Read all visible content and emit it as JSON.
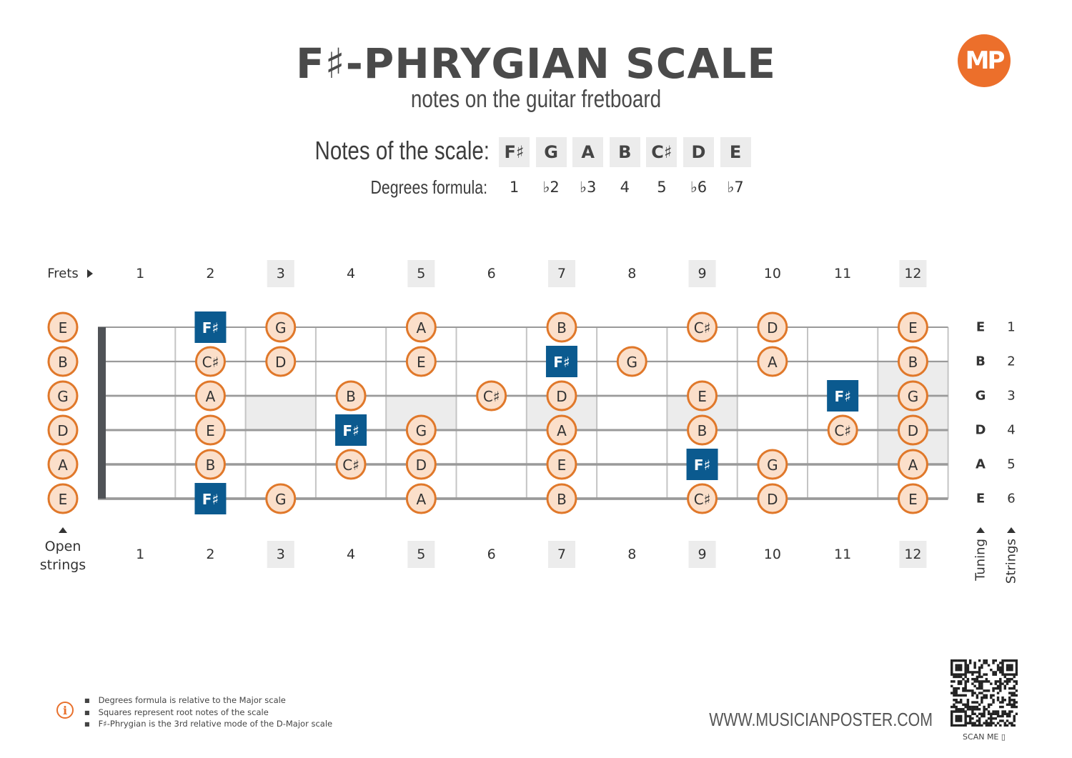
{
  "header": {
    "title": "F♯-PHRYGIAN SCALE",
    "subtitle": "notes on the guitar fretboard",
    "logo_text": "MP"
  },
  "scale": {
    "notes_label": "Notes of the scale:",
    "notes": [
      "F♯",
      "G",
      "A",
      "B",
      "C♯",
      "D",
      "E"
    ],
    "degrees_label": "Degrees formula:",
    "degrees": [
      "1",
      "♭2",
      "♭3",
      "4",
      "5",
      "♭6",
      "♭7"
    ]
  },
  "fretboard": {
    "frets_label": "Frets",
    "fret_numbers": [
      "1",
      "2",
      "3",
      "4",
      "5",
      "6",
      "7",
      "8",
      "9",
      "10",
      "11",
      "12"
    ],
    "marked_frets": [
      3,
      5,
      7,
      9,
      12
    ],
    "open_strings_label": "Open strings",
    "tuning_label": "Tuning",
    "strings_label": "Strings",
    "strings": [
      {
        "tuning": "E",
        "number": "1",
        "open": "E",
        "notes": [
          {
            "fret": 2,
            "note": "F♯",
            "root": true
          },
          {
            "fret": 3,
            "note": "G"
          },
          {
            "fret": 5,
            "note": "A"
          },
          {
            "fret": 7,
            "note": "B"
          },
          {
            "fret": 9,
            "note": "C♯"
          },
          {
            "fret": 10,
            "note": "D"
          },
          {
            "fret": 12,
            "note": "E"
          }
        ]
      },
      {
        "tuning": "B",
        "number": "2",
        "open": "B",
        "notes": [
          {
            "fret": 2,
            "note": "C♯"
          },
          {
            "fret": 3,
            "note": "D"
          },
          {
            "fret": 5,
            "note": "E"
          },
          {
            "fret": 7,
            "note": "F♯",
            "root": true
          },
          {
            "fret": 8,
            "note": "G"
          },
          {
            "fret": 10,
            "note": "A"
          },
          {
            "fret": 12,
            "note": "B"
          }
        ]
      },
      {
        "tuning": "G",
        "number": "3",
        "open": "G",
        "notes": [
          {
            "fret": 2,
            "note": "A"
          },
          {
            "fret": 4,
            "note": "B"
          },
          {
            "fret": 6,
            "note": "C♯"
          },
          {
            "fret": 7,
            "note": "D"
          },
          {
            "fret": 9,
            "note": "E"
          },
          {
            "fret": 11,
            "note": "F♯",
            "root": true
          },
          {
            "fret": 12,
            "note": "G"
          }
        ]
      },
      {
        "tuning": "D",
        "number": "4",
        "open": "D",
        "notes": [
          {
            "fret": 2,
            "note": "E"
          },
          {
            "fret": 4,
            "note": "F♯",
            "root": true
          },
          {
            "fret": 5,
            "note": "G"
          },
          {
            "fret": 7,
            "note": "A"
          },
          {
            "fret": 9,
            "note": "B"
          },
          {
            "fret": 11,
            "note": "C♯"
          },
          {
            "fret": 12,
            "note": "D"
          }
        ]
      },
      {
        "tuning": "A",
        "number": "5",
        "open": "A",
        "notes": [
          {
            "fret": 2,
            "note": "B"
          },
          {
            "fret": 4,
            "note": "C♯"
          },
          {
            "fret": 5,
            "note": "D"
          },
          {
            "fret": 7,
            "note": "E"
          },
          {
            "fret": 9,
            "note": "F♯",
            "root": true
          },
          {
            "fret": 10,
            "note": "G"
          },
          {
            "fret": 12,
            "note": "A"
          }
        ]
      },
      {
        "tuning": "E",
        "number": "6",
        "open": "E",
        "notes": [
          {
            "fret": 2,
            "note": "F♯",
            "root": true
          },
          {
            "fret": 3,
            "note": "G"
          },
          {
            "fret": 5,
            "note": "A"
          },
          {
            "fret": 7,
            "note": "B"
          },
          {
            "fret": 9,
            "note": "C♯"
          },
          {
            "fret": 10,
            "note": "D"
          },
          {
            "fret": 12,
            "note": "E"
          }
        ]
      }
    ]
  },
  "footer": {
    "notes": [
      "Degrees formula is relative to the Major scale",
      "Squares represent root notes of the scale",
      "F♯-Phrygian is the 3rd relative mode of the D-Major scale"
    ],
    "website": "WWW.MUSICIANPOSTER.COM",
    "scan_label": "SCAN ME"
  },
  "colors": {
    "accent": "#e0782a",
    "note_fill": "#fbdfca",
    "root_fill": "#0b5a8f",
    "inlay": "#ececec",
    "nut": "#505357",
    "logo": "#ec6f2b"
  }
}
